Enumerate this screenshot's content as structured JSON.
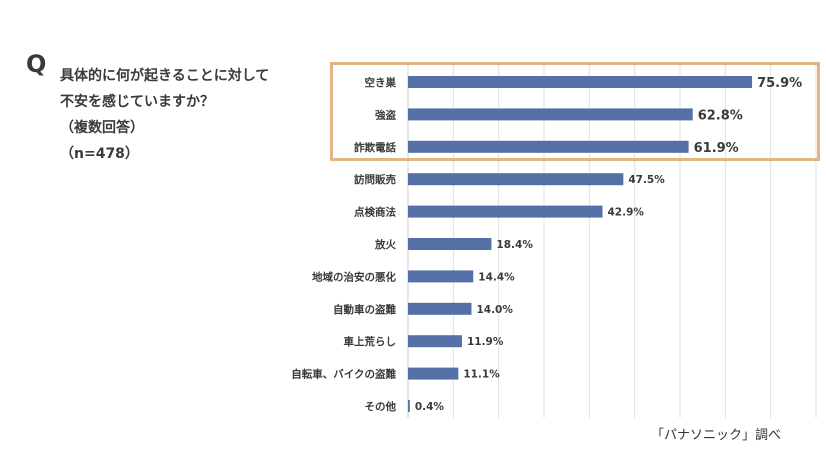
{
  "question": {
    "letter": "Q",
    "lines": [
      "具体的に何が起きることに対して",
      "不安を感じていますか？",
      "（複数回答）",
      "（n=478）"
    ]
  },
  "source": "「パナソニック」調べ",
  "colors": {
    "bar": "#5470a6",
    "highlight": "#e3b486",
    "grid": "#e0e0e0"
  },
  "chart_data": {
    "type": "bar",
    "orientation": "horizontal",
    "categories": [
      "空き巣",
      "強盗",
      "詐欺電話",
      "訪問販売",
      "点検商法",
      "放火",
      "地域の治安の悪化",
      "自動車の盗難",
      "車上荒らし",
      "自転車、バイクの盗難",
      "その他"
    ],
    "values": [
      75.9,
      62.8,
      61.9,
      47.5,
      42.9,
      18.4,
      14.4,
      14.0,
      11.9,
      11.1,
      0.4
    ],
    "labels": [
      "75.9%",
      "62.8%",
      "61.9%",
      "47.5%",
      "42.9%",
      "18.4%",
      "14.4%",
      "14.0%",
      "11.9%",
      "11.1%",
      "0.4%"
    ],
    "highlighted_categories": [
      "空き巣",
      "強盗",
      "詐欺電話"
    ],
    "xlim": [
      0,
      90
    ],
    "grid": true
  }
}
